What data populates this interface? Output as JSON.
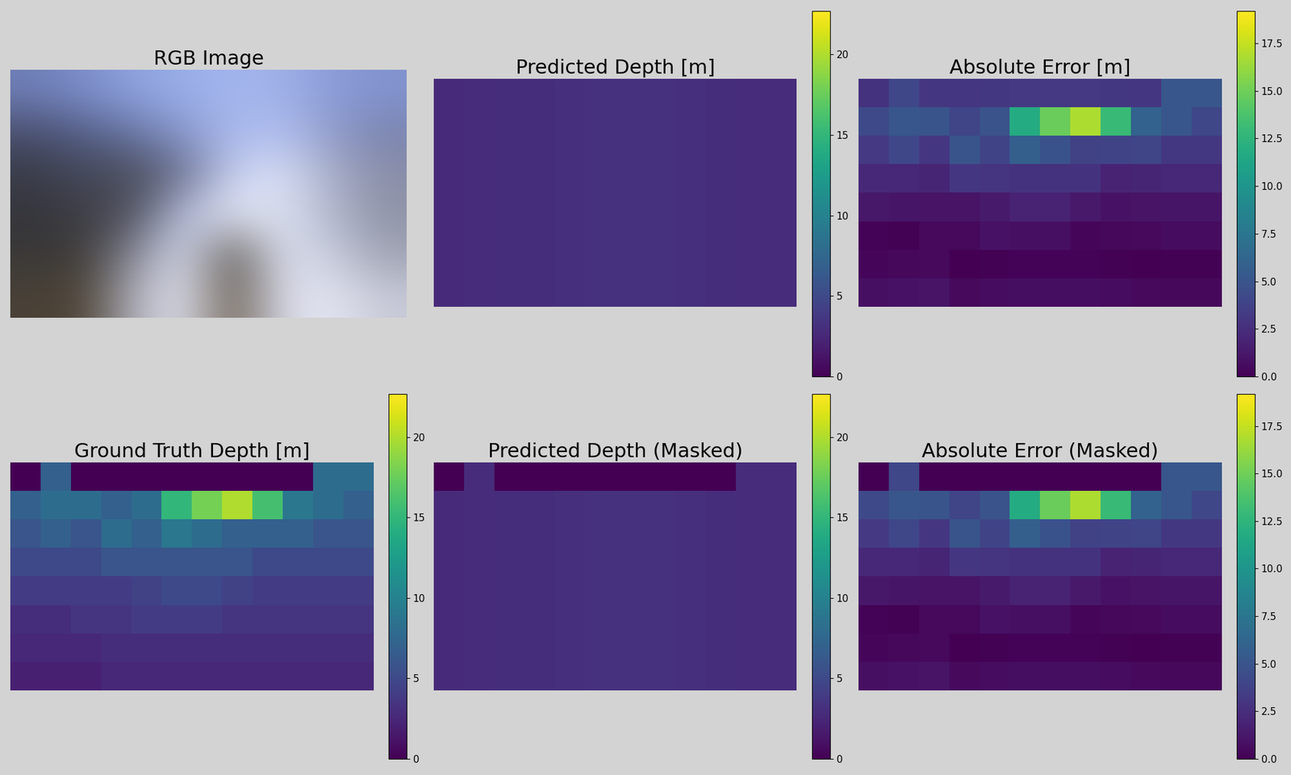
{
  "chart_data": [
    {
      "type": "image",
      "title": "RGB Image",
      "pixels": [
        [
          "#6f7fb8",
          "#7d8fcc",
          "#8fa3e0",
          "#9aaee8",
          "#a3b6ee",
          "#9fb0e8",
          "#8a9cd8",
          "#8294d0"
        ],
        [
          "#4a5070",
          "#55608a",
          "#6a78a8",
          "#8a9ad0",
          "#a8b8ec",
          "#b0bef0",
          "#8f9ac8",
          "#7a84b0"
        ],
        [
          "#3a3c48",
          "#45485a",
          "#4a4c58",
          "#6a7090",
          "#c8d0f0",
          "#d8def4",
          "#a8aec8",
          "#8a8ea8"
        ],
        [
          "#35363c",
          "#3c3d44",
          "#505260",
          "#b8c0e0",
          "#e4e8f6",
          "#dde2f2",
          "#b0b6cc",
          "#9094a8"
        ],
        [
          "#3a3836",
          "#403c38",
          "#8a8c9c",
          "#d8dcee",
          "#5a5652",
          "#dce0f0",
          "#c8ccdc",
          "#a0a4b4"
        ],
        [
          "#4a4238",
          "#504638",
          "#b0b0bc",
          "#e0e2ee",
          "#6a5e50",
          "#d8dae8",
          "#e4e6f2",
          "#c8cad8"
        ]
      ]
    },
    {
      "type": "heatmap",
      "title": "Predicted Depth [m]",
      "cells": [
        [
          2.8,
          2.9,
          3.0,
          3.0,
          3.1,
          3.2,
          3.2,
          3.2,
          3.1,
          3.0,
          2.9,
          2.9
        ],
        [
          2.8,
          2.9,
          3.0,
          3.0,
          3.1,
          3.2,
          3.2,
          3.2,
          3.1,
          3.0,
          2.9,
          2.9
        ],
        [
          2.8,
          2.9,
          3.0,
          3.0,
          3.1,
          3.2,
          3.2,
          3.2,
          3.1,
          3.0,
          2.9,
          2.9
        ],
        [
          2.8,
          2.9,
          3.0,
          3.0,
          3.1,
          3.2,
          3.2,
          3.2,
          3.1,
          3.0,
          2.9,
          2.9
        ],
        [
          2.8,
          2.9,
          3.0,
          3.0,
          3.1,
          3.2,
          3.2,
          3.2,
          3.1,
          3.0,
          2.9,
          2.9
        ],
        [
          2.8,
          2.9,
          3.0,
          3.0,
          3.1,
          3.2,
          3.2,
          3.2,
          3.1,
          3.0,
          2.9,
          2.9
        ],
        [
          2.8,
          2.9,
          3.0,
          3.0,
          3.1,
          3.2,
          3.2,
          3.2,
          3.1,
          3.0,
          2.9,
          2.9
        ],
        [
          2.8,
          2.9,
          3.0,
          3.0,
          3.1,
          3.2,
          3.2,
          3.2,
          3.1,
          3.0,
          2.9,
          2.9
        ]
      ],
      "colorbar": {
        "range": [
          0,
          22.7
        ],
        "ticks": [
          0,
          5,
          10,
          15,
          20
        ]
      }
    },
    {
      "type": "heatmap",
      "title": "Absolute Error [m]",
      "cells": [
        [
          2.8,
          4.1,
          3.0,
          3.0,
          3.1,
          3.2,
          3.2,
          3.2,
          3.1,
          3.0,
          5.1,
          5.1
        ],
        [
          4.2,
          5.1,
          5.0,
          4.0,
          4.9,
          11.8,
          14.8,
          16.8,
          12.9,
          6.0,
          5.1,
          4.1
        ],
        [
          3.2,
          4.1,
          3.0,
          5.0,
          3.9,
          5.8,
          4.8,
          3.8,
          3.9,
          4.0,
          3.1,
          3.1
        ],
        [
          2.2,
          2.1,
          2.0,
          3.0,
          2.9,
          2.8,
          2.8,
          2.8,
          1.9,
          2.0,
          2.1,
          2.1
        ],
        [
          1.2,
          1.1,
          1.0,
          1.0,
          1.4,
          1.8,
          1.8,
          1.3,
          0.9,
          1.0,
          1.1,
          1.1
        ],
        [
          0.2,
          0.1,
          0.5,
          0.5,
          0.9,
          0.8,
          0.8,
          0.3,
          0.4,
          0.5,
          0.6,
          0.6
        ],
        [
          0.3,
          0.4,
          0.5,
          0.0,
          0.1,
          0.2,
          0.2,
          0.2,
          0.1,
          0.0,
          0.1,
          0.1
        ],
        [
          0.8,
          0.9,
          1.0,
          0.5,
          0.6,
          0.7,
          0.7,
          0.7,
          0.6,
          0.5,
          0.4,
          0.4
        ]
      ],
      "colorbar": {
        "range": [
          0,
          19.2
        ],
        "ticks": [
          {
            "value": 0,
            "label": "0.0"
          },
          2.5,
          {
            "value": 5,
            "label": "5.0"
          },
          7.5,
          {
            "value": 10,
            "label": "10.0"
          },
          12.5,
          {
            "value": 15,
            "label": "15.0"
          },
          17.5
        ]
      }
    },
    {
      "type": "heatmap",
      "title": "Ground Truth Depth [m]",
      "cells": [
        [
          0,
          7,
          0,
          0,
          0,
          0,
          0,
          0,
          0,
          0,
          8,
          8
        ],
        [
          7,
          8,
          8,
          7,
          8,
          15,
          18,
          20,
          16,
          9,
          8,
          7
        ],
        [
          6,
          7,
          6,
          8,
          7,
          9,
          8,
          7,
          7,
          7,
          6,
          6
        ],
        [
          5,
          5,
          5,
          6,
          6,
          6,
          6,
          6,
          5,
          5,
          5,
          5
        ],
        [
          4,
          4,
          4,
          4,
          4.5,
          5,
          5,
          4.5,
          4,
          4,
          4,
          4
        ],
        [
          3,
          3,
          3.5,
          3.5,
          4,
          4,
          4,
          3.5,
          3.5,
          3.5,
          3.5,
          3.5
        ],
        [
          2.5,
          2.5,
          2.5,
          3,
          3,
          3,
          3,
          3,
          3,
          3,
          3,
          3
        ],
        [
          2,
          2,
          2,
          2.5,
          2.5,
          2.5,
          2.5,
          2.5,
          2.5,
          2.5,
          2.5,
          2.5
        ]
      ],
      "colorbar": {
        "range": [
          0,
          22.7
        ],
        "ticks": [
          0,
          5,
          10,
          15,
          20
        ]
      }
    },
    {
      "type": "heatmap",
      "title": "Predicted Depth (Masked)",
      "cells": [
        [
          0,
          2.9,
          0,
          0,
          0,
          0,
          0,
          0,
          0,
          0,
          2.9,
          2.9
        ],
        [
          2.8,
          2.9,
          3.0,
          3.0,
          3.1,
          3.2,
          3.2,
          3.2,
          3.1,
          3.0,
          2.9,
          2.9
        ],
        [
          2.8,
          2.9,
          3.0,
          3.0,
          3.1,
          3.2,
          3.2,
          3.2,
          3.1,
          3.0,
          2.9,
          2.9
        ],
        [
          2.8,
          2.9,
          3.0,
          3.0,
          3.1,
          3.2,
          3.2,
          3.2,
          3.1,
          3.0,
          2.9,
          2.9
        ],
        [
          2.8,
          2.9,
          3.0,
          3.0,
          3.1,
          3.2,
          3.2,
          3.2,
          3.1,
          3.0,
          2.9,
          2.9
        ],
        [
          2.8,
          2.9,
          3.0,
          3.0,
          3.1,
          3.2,
          3.2,
          3.2,
          3.1,
          3.0,
          2.9,
          2.9
        ],
        [
          2.8,
          2.9,
          3.0,
          3.0,
          3.1,
          3.2,
          3.2,
          3.2,
          3.1,
          3.0,
          2.9,
          2.9
        ],
        [
          2.8,
          2.9,
          3.0,
          3.0,
          3.1,
          3.2,
          3.2,
          3.2,
          3.1,
          3.0,
          2.9,
          2.9
        ]
      ],
      "colorbar": {
        "range": [
          0,
          22.7
        ],
        "ticks": [
          0,
          5,
          10,
          15,
          20
        ]
      }
    },
    {
      "type": "heatmap",
      "title": "Absolute Error (Masked)",
      "cells": [
        [
          0,
          4.1,
          0,
          0,
          0,
          0,
          0,
          0,
          0,
          0,
          5.1,
          5.1
        ],
        [
          4.2,
          5.1,
          5.0,
          4.0,
          4.9,
          11.8,
          14.8,
          16.8,
          12.9,
          6.0,
          5.1,
          4.1
        ],
        [
          3.2,
          4.1,
          3.0,
          5.0,
          3.9,
          5.8,
          4.8,
          3.8,
          3.9,
          4.0,
          3.1,
          3.1
        ],
        [
          2.2,
          2.1,
          2.0,
          3.0,
          2.9,
          2.8,
          2.8,
          2.8,
          1.9,
          2.0,
          2.1,
          2.1
        ],
        [
          1.2,
          1.1,
          1.0,
          1.0,
          1.4,
          1.8,
          1.8,
          1.3,
          0.9,
          1.0,
          1.1,
          1.1
        ],
        [
          0.2,
          0.1,
          0.5,
          0.5,
          0.9,
          0.8,
          0.8,
          0.3,
          0.4,
          0.5,
          0.6,
          0.6
        ],
        [
          0.3,
          0.4,
          0.5,
          0.0,
          0.1,
          0.2,
          0.2,
          0.2,
          0.1,
          0.0,
          0.1,
          0.1
        ],
        [
          0.8,
          0.9,
          1.0,
          0.5,
          0.6,
          0.7,
          0.7,
          0.7,
          0.6,
          0.5,
          0.4,
          0.4
        ]
      ],
      "colorbar": {
        "range": [
          0,
          19.2
        ],
        "ticks": [
          {
            "value": 0,
            "label": "0.0"
          },
          2.5,
          {
            "value": 5,
            "label": "5.0"
          },
          7.5,
          {
            "value": 10,
            "label": "10.0"
          },
          12.5,
          {
            "value": 15,
            "label": "15.0"
          },
          17.5
        ]
      }
    }
  ]
}
